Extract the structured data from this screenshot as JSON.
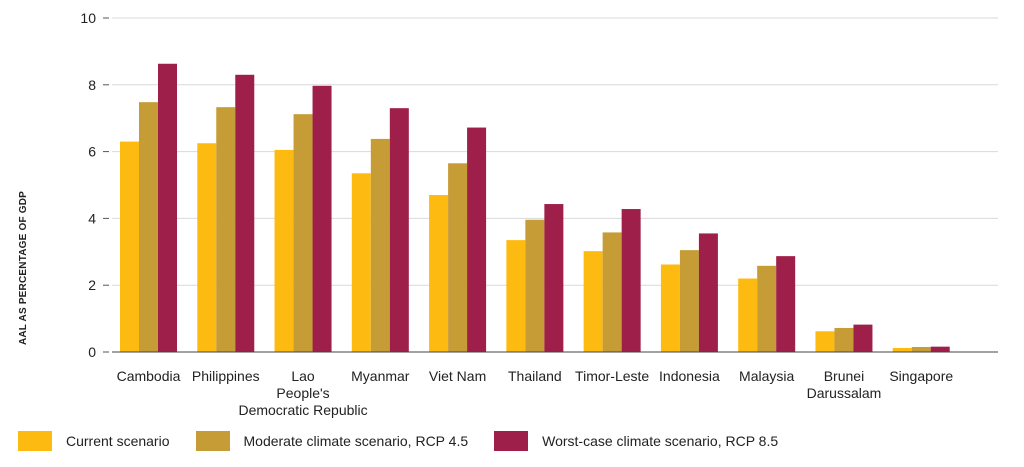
{
  "chart_data": {
    "type": "bar",
    "ylabel": "AAL AS PERCENTAGE OF GDP",
    "ylim": [
      0,
      10
    ],
    "yticks": [
      0,
      2,
      4,
      6,
      8,
      10
    ],
    "grid": true,
    "legend_position": "bottom-left",
    "categories": [
      [
        "Cambodia"
      ],
      [
        "Philippines"
      ],
      [
        "Lao",
        "People's",
        "Democratic Republic"
      ],
      [
        "Myanmar"
      ],
      [
        "Viet Nam"
      ],
      [
        "Thailand"
      ],
      [
        "Timor-Leste"
      ],
      [
        "Indonesia"
      ],
      [
        "Malaysia"
      ],
      [
        "Brunei",
        "Darussalam"
      ],
      [
        "Singapore"
      ]
    ],
    "series": [
      {
        "name": "Current scenario",
        "color": "#FDBB12",
        "values": [
          6.3,
          6.25,
          6.05,
          5.35,
          4.7,
          3.35,
          3.02,
          2.62,
          2.2,
          0.62,
          0.12
        ]
      },
      {
        "name": "Moderate climate scenario, RCP 4.5",
        "color": "#C59C35",
        "values": [
          7.48,
          7.33,
          7.12,
          6.38,
          5.65,
          3.96,
          3.58,
          3.05,
          2.58,
          0.72,
          0.15
        ]
      },
      {
        "name": "Worst-case climate scenario, RCP 8.5",
        "color": "#9E1F4A",
        "values": [
          8.63,
          8.3,
          7.97,
          7.3,
          6.72,
          4.43,
          4.28,
          3.55,
          2.87,
          0.82,
          0.16
        ]
      }
    ]
  }
}
